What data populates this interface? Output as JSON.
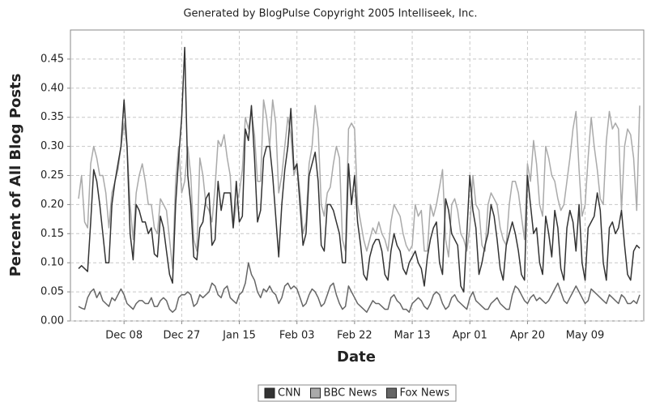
{
  "chart_data": {
    "type": "line",
    "title": "Generated by BlogPulse Copyright 2005 Intelliseek, Inc.",
    "xlabel": "Date",
    "ylabel": "Percent of All Blog Posts",
    "categories": [
      null,
      null,
      null,
      null,
      null,
      null,
      null,
      null,
      null,
      null,
      null,
      null,
      null,
      null,
      null,
      "Dec 08",
      null,
      null,
      null,
      null,
      null,
      null,
      null,
      null,
      null,
      null,
      null,
      null,
      null,
      null,
      null,
      null,
      null,
      null,
      "Dec 27",
      null,
      null,
      null,
      null,
      null,
      null,
      null,
      null,
      null,
      null,
      null,
      null,
      null,
      null,
      null,
      null,
      null,
      null,
      "Jan 15",
      null,
      null,
      null,
      null,
      null,
      null,
      null,
      null,
      null,
      null,
      null,
      null,
      null,
      null,
      null,
      null,
      null,
      null,
      "Feb 03",
      null,
      null,
      null,
      null,
      null,
      null,
      null,
      null,
      null,
      null,
      null,
      null,
      null,
      null,
      null,
      null,
      null,
      null,
      "Feb 22",
      null,
      null,
      null,
      null,
      null,
      null,
      null,
      null,
      null,
      null,
      null,
      null,
      null,
      null,
      null,
      null,
      null,
      null,
      "Mar 13",
      null,
      null,
      null,
      null,
      null,
      null,
      null,
      null,
      null,
      null,
      null,
      null,
      null,
      null,
      null,
      null,
      null,
      null,
      "Apr 01",
      null,
      null,
      null,
      null,
      null,
      null,
      null,
      null,
      null,
      null,
      null,
      null,
      null,
      null,
      null,
      null,
      null,
      null,
      "Apr 20",
      null,
      null,
      null,
      null,
      null,
      null,
      null,
      null,
      null,
      null,
      null,
      null,
      null,
      null,
      null,
      null,
      null,
      null,
      "May 09",
      null,
      null,
      null,
      null,
      null,
      null,
      null,
      null,
      null,
      null,
      null,
      null,
      null,
      null,
      null,
      null,
      null,
      null
    ],
    "series": [
      {
        "name": "CNN",
        "color": "#333333",
        "values": [
          0.09,
          0.095,
          0.09,
          0.085,
          0.17,
          0.26,
          0.24,
          0.2,
          0.15,
          0.1,
          0.1,
          0.2,
          0.24,
          0.27,
          0.3,
          0.38,
          0.3,
          0.15,
          0.105,
          0.2,
          0.19,
          0.17,
          0.17,
          0.15,
          0.16,
          0.115,
          0.11,
          0.18,
          0.16,
          0.12,
          0.08,
          0.065,
          0.2,
          0.28,
          0.35,
          0.47,
          0.25,
          0.2,
          0.11,
          0.105,
          0.16,
          0.17,
          0.21,
          0.22,
          0.13,
          0.14,
          0.24,
          0.19,
          0.22,
          0.22,
          0.22,
          0.16,
          0.24,
          0.17,
          0.18,
          0.33,
          0.31,
          0.37,
          0.28,
          0.17,
          0.19,
          0.28,
          0.3,
          0.3,
          0.25,
          0.18,
          0.11,
          0.2,
          0.26,
          0.3,
          0.365,
          0.26,
          0.27,
          0.2,
          0.13,
          0.15,
          0.25,
          0.27,
          0.29,
          0.24,
          0.13,
          0.12,
          0.2,
          0.2,
          0.19,
          0.17,
          0.15,
          0.1,
          0.1,
          0.27,
          0.2,
          0.25,
          0.17,
          0.13,
          0.08,
          0.07,
          0.11,
          0.13,
          0.14,
          0.14,
          0.12,
          0.08,
          0.07,
          0.12,
          0.15,
          0.13,
          0.12,
          0.09,
          0.08,
          0.1,
          0.11,
          0.12,
          0.1,
          0.09,
          0.06,
          0.11,
          0.14,
          0.16,
          0.17,
          0.1,
          0.08,
          0.21,
          0.19,
          0.15,
          0.14,
          0.13,
          0.06,
          0.05,
          0.15,
          0.25,
          0.19,
          0.16,
          0.08,
          0.1,
          0.13,
          0.15,
          0.2,
          0.18,
          0.14,
          0.09,
          0.07,
          0.13,
          0.15,
          0.17,
          0.15,
          0.12,
          0.08,
          0.07,
          0.25,
          0.2,
          0.15,
          0.16,
          0.1,
          0.08,
          0.18,
          0.15,
          0.11,
          0.19,
          0.16,
          0.09,
          0.07,
          0.16,
          0.19,
          0.17,
          0.12,
          0.2,
          0.1,
          0.07,
          0.16,
          0.17,
          0.18,
          0.22,
          0.19,
          0.1,
          0.07,
          0.16,
          0.17,
          0.15,
          0.16,
          0.19,
          0.13,
          0.08,
          0.07,
          0.12,
          0.13,
          0.125
        ]
      },
      {
        "name": "BBC News",
        "color": "#aaaaaa",
        "values": [
          0.21,
          0.25,
          0.17,
          0.16,
          0.27,
          0.3,
          0.28,
          0.25,
          0.25,
          0.22,
          0.16,
          0.22,
          0.24,
          0.26,
          0.3,
          0.34,
          0.3,
          0.2,
          0.14,
          0.22,
          0.25,
          0.27,
          0.24,
          0.2,
          0.2,
          0.16,
          0.15,
          0.21,
          0.2,
          0.19,
          0.14,
          0.09,
          0.24,
          0.3,
          0.22,
          0.24,
          0.3,
          0.25,
          0.14,
          0.12,
          0.28,
          0.25,
          0.2,
          0.19,
          0.17,
          0.23,
          0.31,
          0.3,
          0.32,
          0.28,
          0.25,
          0.16,
          0.2,
          0.22,
          0.26,
          0.35,
          0.33,
          0.36,
          0.32,
          0.24,
          0.24,
          0.38,
          0.35,
          0.3,
          0.38,
          0.34,
          0.22,
          0.25,
          0.3,
          0.35,
          0.32,
          0.25,
          0.27,
          0.22,
          0.15,
          0.17,
          0.27,
          0.3,
          0.37,
          0.33,
          0.2,
          0.18,
          0.22,
          0.23,
          0.27,
          0.3,
          0.28,
          0.14,
          0.12,
          0.33,
          0.34,
          0.33,
          0.2,
          0.17,
          0.14,
          0.12,
          0.14,
          0.16,
          0.15,
          0.17,
          0.15,
          0.14,
          0.12,
          0.17,
          0.2,
          0.19,
          0.18,
          0.15,
          0.13,
          0.12,
          0.13,
          0.2,
          0.18,
          0.19,
          0.12,
          0.12,
          0.2,
          0.18,
          0.2,
          0.23,
          0.26,
          0.14,
          0.11,
          0.2,
          0.21,
          0.19,
          0.15,
          0.14,
          0.12,
          0.16,
          0.25,
          0.2,
          0.19,
          0.13,
          0.12,
          0.2,
          0.22,
          0.21,
          0.2,
          0.16,
          0.14,
          0.13,
          0.2,
          0.24,
          0.24,
          0.22,
          0.18,
          0.14,
          0.27,
          0.24,
          0.31,
          0.27,
          0.2,
          0.18,
          0.3,
          0.28,
          0.25,
          0.24,
          0.21,
          0.19,
          0.2,
          0.24,
          0.28,
          0.33,
          0.36,
          0.26,
          0.18,
          0.2,
          0.28,
          0.35,
          0.3,
          0.26,
          0.21,
          0.2,
          0.31,
          0.36,
          0.33,
          0.34,
          0.33,
          0.19,
          0.3,
          0.33,
          0.32,
          0.28,
          0.19,
          0.37
        ]
      },
      {
        "name": "Fox News",
        "color": "#666666",
        "values": [
          0.025,
          0.022,
          0.02,
          0.04,
          0.05,
          0.055,
          0.04,
          0.05,
          0.035,
          0.03,
          0.025,
          0.04,
          0.035,
          0.045,
          0.055,
          0.045,
          0.03,
          0.025,
          0.02,
          0.03,
          0.035,
          0.035,
          0.03,
          0.03,
          0.04,
          0.025,
          0.025,
          0.035,
          0.04,
          0.035,
          0.02,
          0.015,
          0.02,
          0.04,
          0.045,
          0.045,
          0.05,
          0.045,
          0.025,
          0.03,
          0.045,
          0.04,
          0.045,
          0.05,
          0.065,
          0.06,
          0.045,
          0.04,
          0.055,
          0.06,
          0.04,
          0.035,
          0.03,
          0.045,
          0.05,
          0.065,
          0.1,
          0.08,
          0.07,
          0.05,
          0.04,
          0.055,
          0.05,
          0.06,
          0.05,
          0.045,
          0.03,
          0.04,
          0.06,
          0.065,
          0.055,
          0.06,
          0.055,
          0.04,
          0.025,
          0.03,
          0.045,
          0.055,
          0.05,
          0.04,
          0.025,
          0.03,
          0.045,
          0.06,
          0.065,
          0.045,
          0.03,
          0.02,
          0.025,
          0.06,
          0.05,
          0.04,
          0.03,
          0.025,
          0.02,
          0.015,
          0.025,
          0.035,
          0.03,
          0.03,
          0.025,
          0.02,
          0.02,
          0.04,
          0.045,
          0.035,
          0.03,
          0.02,
          0.02,
          0.015,
          0.03,
          0.035,
          0.04,
          0.035,
          0.025,
          0.02,
          0.03,
          0.045,
          0.05,
          0.045,
          0.03,
          0.02,
          0.025,
          0.04,
          0.045,
          0.035,
          0.03,
          0.025,
          0.02,
          0.04,
          0.05,
          0.035,
          0.03,
          0.025,
          0.02,
          0.02,
          0.03,
          0.035,
          0.04,
          0.03,
          0.025,
          0.02,
          0.02,
          0.045,
          0.06,
          0.055,
          0.045,
          0.035,
          0.03,
          0.04,
          0.045,
          0.035,
          0.04,
          0.035,
          0.03,
          0.035,
          0.045,
          0.055,
          0.065,
          0.05,
          0.035,
          0.03,
          0.04,
          0.05,
          0.06,
          0.05,
          0.04,
          0.03,
          0.035,
          0.055,
          0.05,
          0.045,
          0.04,
          0.035,
          0.03,
          0.045,
          0.04,
          0.035,
          0.03,
          0.045,
          0.04,
          0.03,
          0.03,
          0.035,
          0.03,
          0.045
        ]
      }
    ],
    "ylim": [
      0,
      0.5
    ],
    "yticks": [
      {
        "value": 0,
        "label": "0.00"
      },
      0.05,
      {
        "value": 0.1,
        "label": "0.10"
      },
      0.15,
      {
        "value": 0.2,
        "label": "0.20"
      },
      0.25,
      {
        "value": 0.3,
        "label": "0.30"
      },
      0.35,
      {
        "value": 0.4,
        "label": "0.40"
      },
      0.45
    ],
    "grid": true,
    "legend": "bottom"
  }
}
